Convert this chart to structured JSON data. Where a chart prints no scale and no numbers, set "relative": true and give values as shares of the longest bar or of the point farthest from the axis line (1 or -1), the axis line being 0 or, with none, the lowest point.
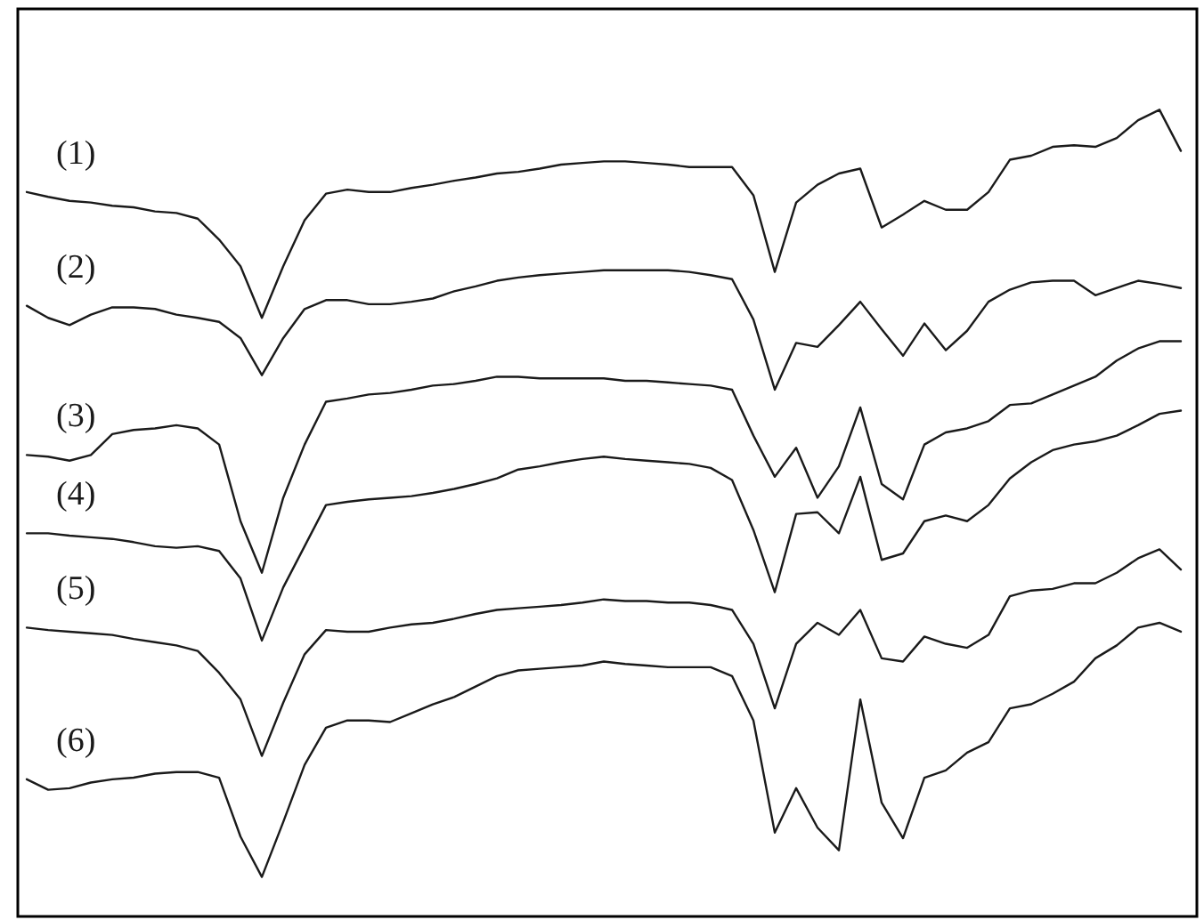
{
  "chart_data": {
    "type": "line",
    "relative": true,
    "categories": [
      null,
      null,
      null,
      null,
      null,
      null,
      null,
      null,
      null,
      null,
      null,
      null,
      null,
      null,
      null,
      null,
      null,
      null,
      null,
      null,
      null,
      null,
      null,
      null,
      null,
      null,
      null,
      null,
      null,
      null,
      null,
      null,
      null,
      null,
      null,
      null,
      null,
      null,
      null,
      null,
      null,
      null,
      null,
      null,
      null,
      null,
      null,
      null,
      null,
      null,
      null,
      null,
      null,
      null,
      null
    ],
    "series": [
      {
        "name": "(1)",
        "color": "#1a1a1a",
        "values": [
          0.898,
          0.892,
          0.887,
          0.885,
          0.881,
          0.879,
          0.874,
          0.872,
          0.865,
          0.839,
          0.806,
          0.742,
          0.806,
          0.863,
          0.896,
          0.901,
          0.898,
          0.898,
          0.903,
          0.907,
          0.912,
          0.916,
          0.921,
          0.923,
          0.927,
          0.932,
          0.934,
          0.936,
          0.936,
          0.934,
          0.932,
          0.929,
          0.929,
          0.929,
          0.894,
          0.799,
          0.885,
          0.907,
          0.921,
          0.927,
          0.854,
          0.87,
          0.887,
          0.876,
          0.876,
          0.898,
          0.938,
          0.943,
          0.954,
          0.956,
          0.954,
          0.965,
          0.987,
          1,
          0.949
        ]
      },
      {
        "name": "(2)",
        "color": "#1a1a1a",
        "values": [
          0.757,
          0.742,
          0.733,
          0.746,
          0.755,
          0.755,
          0.753,
          0.746,
          0.742,
          0.737,
          0.717,
          0.671,
          0.717,
          0.753,
          0.764,
          0.764,
          0.759,
          0.759,
          0.762,
          0.766,
          0.775,
          0.781,
          0.788,
          0.792,
          0.795,
          0.797,
          0.799,
          0.801,
          0.801,
          0.801,
          0.801,
          0.799,
          0.795,
          0.79,
          0.74,
          0.653,
          0.711,
          0.706,
          0.733,
          0.762,
          0.728,
          0.695,
          0.735,
          0.702,
          0.726,
          0.762,
          0.777,
          0.786,
          0.788,
          0.788,
          0.77,
          0.779,
          0.788,
          0.784,
          0.779
        ]
      },
      {
        "name": "(3)",
        "color": "#1a1a1a",
        "values": [
          0.572,
          0.57,
          0.565,
          0.572,
          0.598,
          0.603,
          0.605,
          0.609,
          0.605,
          0.585,
          0.49,
          0.426,
          0.519,
          0.585,
          0.638,
          0.642,
          0.647,
          0.649,
          0.653,
          0.658,
          0.66,
          0.664,
          0.669,
          0.669,
          0.667,
          0.667,
          0.667,
          0.667,
          0.664,
          0.664,
          0.662,
          0.66,
          0.658,
          0.653,
          0.596,
          0.545,
          0.581,
          0.519,
          0.558,
          0.631,
          0.536,
          0.517,
          0.585,
          0.6,
          0.605,
          0.614,
          0.634,
          0.636,
          0.647,
          0.658,
          0.669,
          0.689,
          0.704,
          0.713,
          0.713
        ]
      },
      {
        "name": "(4)",
        "color": "#1a1a1a",
        "values": [
          0.475,
          0.475,
          0.472,
          0.47,
          0.468,
          0.464,
          0.459,
          0.457,
          0.459,
          0.453,
          0.419,
          0.342,
          0.408,
          0.459,
          0.51,
          0.514,
          0.517,
          0.519,
          0.521,
          0.525,
          0.53,
          0.536,
          0.543,
          0.554,
          0.558,
          0.563,
          0.567,
          0.57,
          0.567,
          0.565,
          0.563,
          0.561,
          0.556,
          0.541,
          0.479,
          0.402,
          0.499,
          0.501,
          0.475,
          0.545,
          0.442,
          0.45,
          0.49,
          0.497,
          0.49,
          0.51,
          0.543,
          0.563,
          0.578,
          0.585,
          0.589,
          0.596,
          0.609,
          0.623,
          0.627
        ]
      },
      {
        "name": "(5)",
        "color": "#1a1a1a",
        "values": [
          0.358,
          0.355,
          0.353,
          0.351,
          0.349,
          0.344,
          0.34,
          0.336,
          0.329,
          0.302,
          0.269,
          0.199,
          0.265,
          0.325,
          0.355,
          0.353,
          0.353,
          0.358,
          0.362,
          0.364,
          0.369,
          0.375,
          0.38,
          0.382,
          0.384,
          0.386,
          0.389,
          0.393,
          0.391,
          0.391,
          0.389,
          0.389,
          0.386,
          0.38,
          0.338,
          0.258,
          0.338,
          0.364,
          0.349,
          0.38,
          0.32,
          0.316,
          0.347,
          0.338,
          0.333,
          0.349,
          0.397,
          0.404,
          0.406,
          0.413,
          0.413,
          0.426,
          0.444,
          0.455,
          0.43
        ]
      },
      {
        "name": "(6)",
        "color": "#1a1a1a",
        "values": [
          0.17,
          0.157,
          0.159,
          0.166,
          0.17,
          0.172,
          0.177,
          0.179,
          0.179,
          0.172,
          0.099,
          0.049,
          0.117,
          0.188,
          0.234,
          0.243,
          0.243,
          0.241,
          0.252,
          0.263,
          0.272,
          0.285,
          0.298,
          0.305,
          0.307,
          0.309,
          0.311,
          0.316,
          0.313,
          0.311,
          0.309,
          0.309,
          0.309,
          0.298,
          0.243,
          0.104,
          0.159,
          0.11,
          0.082,
          0.269,
          0.141,
          0.097,
          0.172,
          0.181,
          0.203,
          0.216,
          0.258,
          0.263,
          0.276,
          0.291,
          0.32,
          0.336,
          0.358,
          0.364,
          0.353
        ]
      }
    ]
  }
}
